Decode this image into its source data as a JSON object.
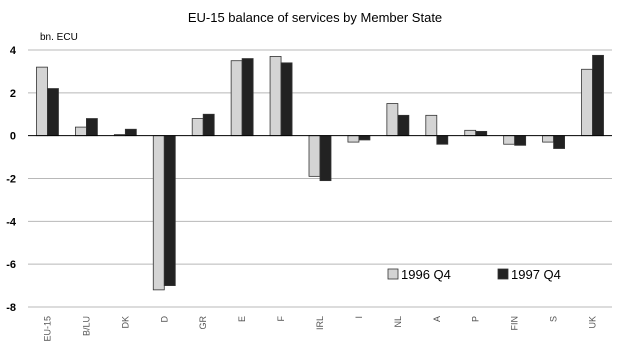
{
  "chart_data": {
    "type": "bar",
    "title": "EU-15 balance of services by Member State",
    "ylabel": "bn. ECU",
    "ylim": [
      -8,
      4
    ],
    "yticks": [
      4,
      2,
      0,
      -2,
      -4,
      -6,
      -8
    ],
    "grid": true,
    "legend_position": "bottom-right",
    "categories": [
      "EU-15",
      "B/LU",
      "DK",
      "D",
      "GR",
      "E",
      "F",
      "IRL",
      "I",
      "NL",
      "A",
      "P",
      "FIN",
      "S",
      "UK"
    ],
    "series": [
      {
        "name": "1996 Q4",
        "color": "#d4d4d4",
        "values": [
          3.2,
          0.4,
          0.05,
          -7.2,
          0.8,
          3.5,
          3.7,
          -1.9,
          -0.3,
          1.5,
          0.95,
          0.25,
          -0.4,
          -0.3,
          3.1
        ]
      },
      {
        "name": "1997 Q4",
        "color": "#222222",
        "values": [
          2.2,
          0.8,
          0.3,
          -7.0,
          1.0,
          3.6,
          3.4,
          -2.1,
          -0.2,
          0.95,
          -0.4,
          0.2,
          -0.45,
          -0.6,
          3.75
        ]
      }
    ]
  }
}
